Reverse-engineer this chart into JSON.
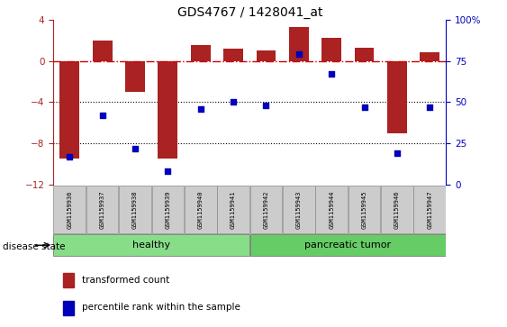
{
  "title": "GDS4767 / 1428041_at",
  "samples": [
    "GSM1159936",
    "GSM1159937",
    "GSM1159938",
    "GSM1159939",
    "GSM1159940",
    "GSM1159941",
    "GSM1159942",
    "GSM1159943",
    "GSM1159944",
    "GSM1159945",
    "GSM1159946",
    "GSM1159947"
  ],
  "red_bars": [
    -9.5,
    2.0,
    -3.0,
    -9.5,
    1.5,
    1.2,
    1.0,
    3.3,
    2.2,
    1.3,
    -7.0,
    0.8
  ],
  "blue_dots": [
    17,
    42,
    22,
    8,
    46,
    50,
    48,
    79,
    67,
    47,
    19,
    47
  ],
  "ylim_left": [
    -12,
    4
  ],
  "ylim_right": [
    0,
    100
  ],
  "yticks_left": [
    4,
    0,
    -4,
    -8,
    -12
  ],
  "yticks_right": [
    100,
    75,
    50,
    25,
    0
  ],
  "healthy_count": 6,
  "total_count": 12,
  "bar_color": "#aa2222",
  "dot_color": "#0000bb",
  "hline_color": "#cc0000",
  "healthy_color": "#88dd88",
  "tumor_color": "#66cc66",
  "label_healthy": "healthy",
  "label_tumor": "pancreatic tumor",
  "disease_state_label": "disease state",
  "legend_bar": "transformed count",
  "legend_dot": "percentile rank within the sample"
}
